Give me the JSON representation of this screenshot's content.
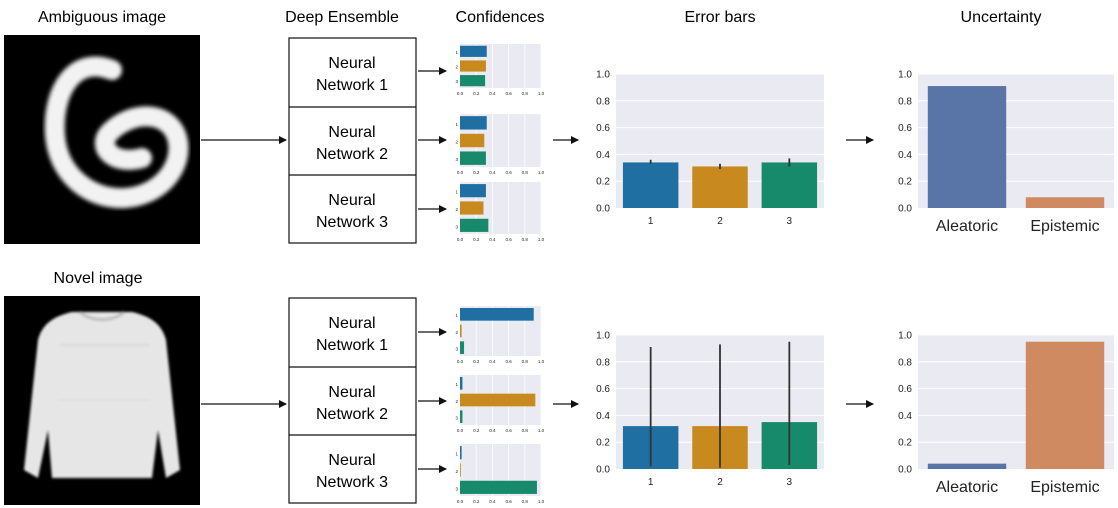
{
  "headers": {
    "ambiguous": "Ambiguous image",
    "ensemble": "Deep Ensemble",
    "confidences": "Confidences",
    "error_bars": "Error bars",
    "uncertainty": "Uncertainty",
    "novel": "Novel image"
  },
  "networks": [
    {
      "line1": "Neural",
      "line2": "Network 1"
    },
    {
      "line1": "Neural",
      "line2": "Network 2"
    },
    {
      "line1": "Neural",
      "line2": "Network 3"
    }
  ],
  "colors": {
    "class1": "#1f6fa3",
    "class2": "#c8891f",
    "class3": "#168a6a",
    "aleatoric": "#5975a8",
    "epistemic": "#d08a62",
    "panel_bg": "#eaeaf2",
    "error_line": "#333333"
  },
  "chart_data": [
    {
      "id": "top-confidences",
      "type": "bar",
      "orientation": "horizontal",
      "categories": [
        "1",
        "2",
        "3"
      ],
      "xlim": [
        0,
        1
      ],
      "ticks": [
        "0.0",
        "0.2",
        "0.4",
        "0.6",
        "0.8",
        "1.0"
      ],
      "series": [
        {
          "values": [
            0.33,
            0.32,
            0.31
          ]
        },
        {
          "values": [
            0.33,
            0.3,
            0.32
          ]
        },
        {
          "values": [
            0.32,
            0.29,
            0.35
          ]
        }
      ]
    },
    {
      "id": "top-error-bars",
      "type": "bar",
      "categories": [
        "1",
        "2",
        "3"
      ],
      "ylim": [
        0,
        1
      ],
      "ticks": [
        "0.0",
        "0.2",
        "0.4",
        "0.6",
        "0.8",
        "1.0"
      ],
      "values": [
        0.34,
        0.31,
        0.34
      ],
      "err_low": [
        0.33,
        0.29,
        0.31
      ],
      "err_high": [
        0.36,
        0.33,
        0.37
      ]
    },
    {
      "id": "top-uncertainty",
      "type": "bar",
      "categories": [
        "Aleatoric",
        "Epistemic"
      ],
      "ylim": [
        0,
        1
      ],
      "ticks": [
        "0.0",
        "0.2",
        "0.4",
        "0.6",
        "0.8",
        "1.0"
      ],
      "values": [
        0.91,
        0.08
      ]
    },
    {
      "id": "bottom-confidences",
      "type": "bar",
      "orientation": "horizontal",
      "categories": [
        "1",
        "2",
        "3"
      ],
      "xlim": [
        0,
        1
      ],
      "ticks": [
        "0.0",
        "0.2",
        "0.4",
        "0.6",
        "0.8",
        "1.0"
      ],
      "series": [
        {
          "values": [
            0.91,
            0.02,
            0.05
          ]
        },
        {
          "values": [
            0.03,
            0.93,
            0.03
          ]
        },
        {
          "values": [
            0.02,
            0.01,
            0.95
          ]
        }
      ]
    },
    {
      "id": "bottom-error-bars",
      "type": "bar",
      "categories": [
        "1",
        "2",
        "3"
      ],
      "ylim": [
        0,
        1
      ],
      "ticks": [
        "0.0",
        "0.2",
        "0.4",
        "0.6",
        "0.8",
        "1.0"
      ],
      "values": [
        0.32,
        0.32,
        0.35
      ],
      "err_low": [
        0.02,
        0.01,
        0.03
      ],
      "err_high": [
        0.91,
        0.93,
        0.95
      ]
    },
    {
      "id": "bottom-uncertainty",
      "type": "bar",
      "categories": [
        "Aleatoric",
        "Epistemic"
      ],
      "ylim": [
        0,
        1
      ],
      "ticks": [
        "0.0",
        "0.2",
        "0.4",
        "0.6",
        "0.8",
        "1.0"
      ],
      "values": [
        0.04,
        0.95
      ]
    }
  ]
}
